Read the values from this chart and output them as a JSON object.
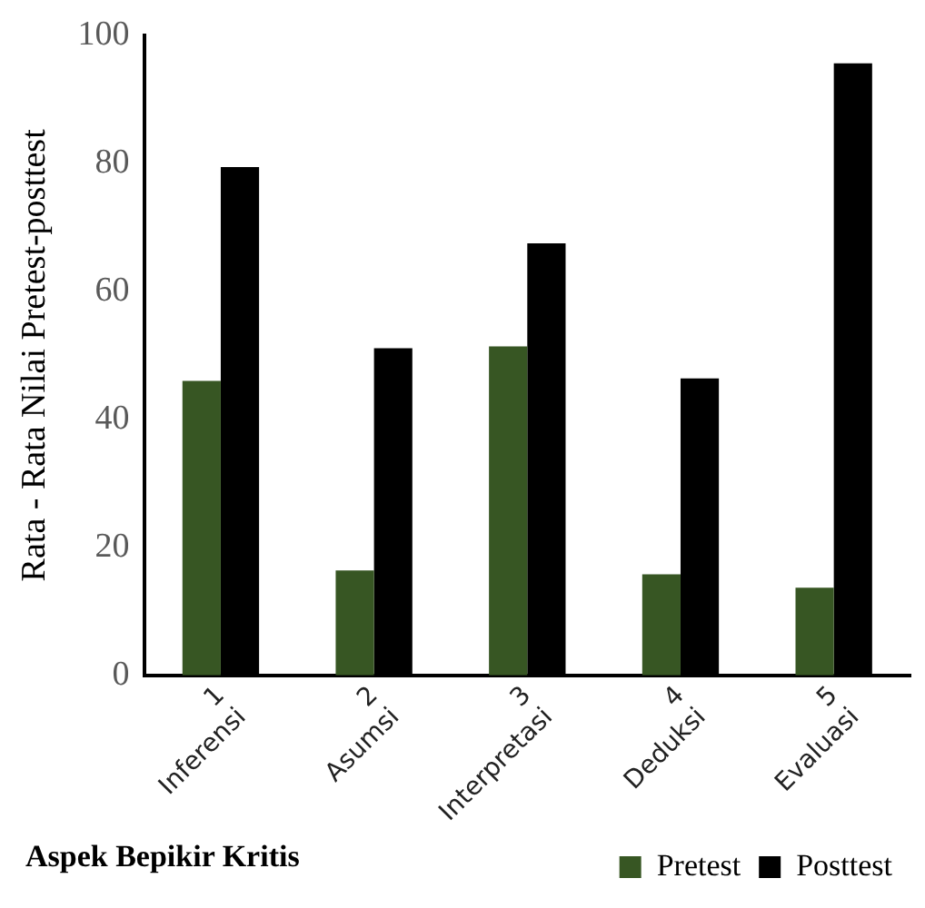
{
  "chart_data": {
    "type": "bar",
    "categories": [
      "1 Inferensi",
      "2 Asumsi",
      "3 Interpretasi",
      "4 Deduksi",
      "5 Evaluasi"
    ],
    "series": [
      {
        "name": "Pretest",
        "color": "#375623",
        "values": [
          46,
          16.4,
          51.4,
          15.8,
          13.7
        ]
      },
      {
        "name": "Posttest",
        "color": "#000000",
        "values": [
          79.4,
          51.1,
          67.5,
          46.4,
          95.6
        ]
      }
    ],
    "xlabel": "Aspek Bepikir Kritis",
    "ylabel": "Rata - Rata Nilai Pretest-posttest",
    "ylim": [
      0,
      100
    ],
    "yticks": [
      0,
      20,
      40,
      60,
      80,
      100
    ],
    "grid": false,
    "legend": "bottom right"
  }
}
